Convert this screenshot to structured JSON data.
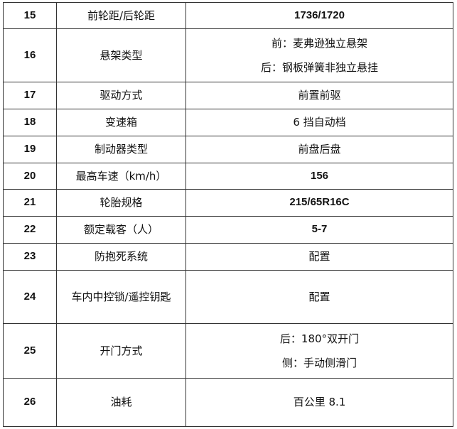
{
  "rows": [
    {
      "no": "15",
      "item": "前轮距/后轮距",
      "value": [
        "1736/1720"
      ]
    },
    {
      "no": "16",
      "item": "悬架类型",
      "value": [
        "前：麦弗逊独立悬架",
        "后：钢板弹簧非独立悬挂"
      ]
    },
    {
      "no": "17",
      "item": "驱动方式",
      "value": [
        "前置前驱"
      ]
    },
    {
      "no": "18",
      "item": "变速箱",
      "value": [
        "6 挡自动档"
      ]
    },
    {
      "no": "19",
      "item": "制动器类型",
      "value": [
        "前盘后盘"
      ]
    },
    {
      "no": "20",
      "item": "最高车速（km/h）",
      "value": [
        "156"
      ]
    },
    {
      "no": "21",
      "item": "轮胎规格",
      "value": [
        "215/65R16C"
      ]
    },
    {
      "no": "22",
      "item": "额定载客（人）",
      "value": [
        "5-7"
      ]
    },
    {
      "no": "23",
      "item": "防抱死系统",
      "value": [
        "配置"
      ]
    },
    {
      "no": "24",
      "item": "车内中控锁/遥控钥匙",
      "value": [
        "配置"
      ]
    },
    {
      "no": "25",
      "item": "开门方式",
      "value": [
        "后：180°双开门",
        "侧：手动侧滑门"
      ]
    },
    {
      "no": "26",
      "item": "油耗",
      "value": [
        "百公里 8.1"
      ]
    }
  ]
}
